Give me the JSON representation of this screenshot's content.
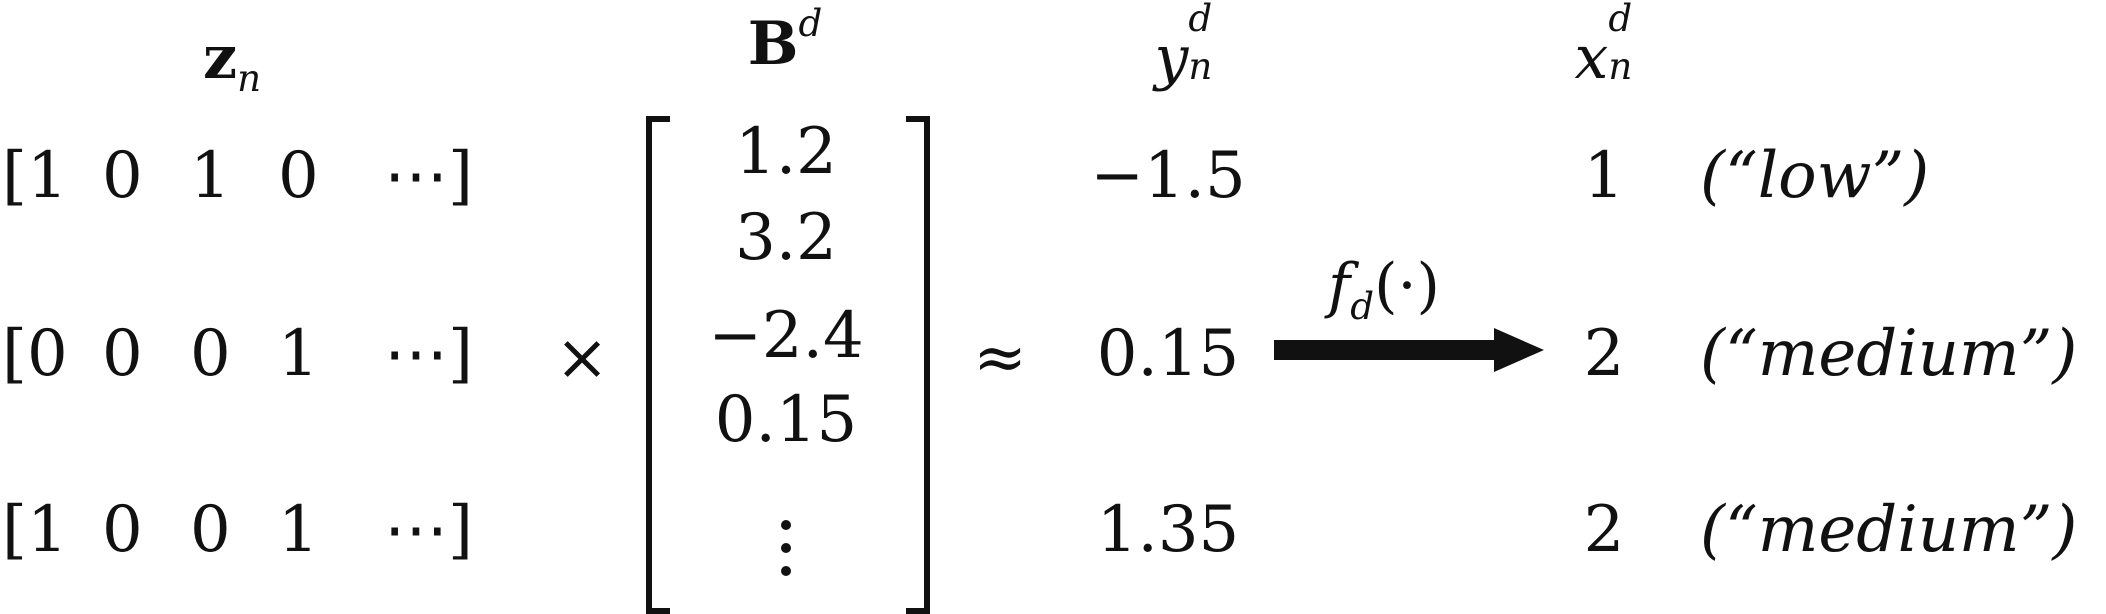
{
  "headers": {
    "z_base": "z",
    "z_sub": "n",
    "b_base": "B",
    "b_sup": "d",
    "y_base": "y",
    "y_sup": "d",
    "y_sub": "n",
    "x_base": "x",
    "x_sup": "d",
    "x_sub": "n"
  },
  "rows": [
    {
      "z": [
        "[1",
        "0",
        "1",
        "0",
        "⋯]"
      ],
      "y": "−1.5",
      "x": "1",
      "label": "(“low”)"
    },
    {
      "z": [
        "[0",
        "0",
        "0",
        "1",
        "⋯]"
      ],
      "y": "0.15",
      "x": "2",
      "label": "(“medium”)"
    },
    {
      "z": [
        "[1",
        "0",
        "0",
        "1",
        "⋯]"
      ],
      "y": "1.35",
      "x": "2",
      "label": "(“medium”)"
    }
  ],
  "b_values": [
    "1.2",
    "3.2",
    "−2.4",
    "0.15"
  ],
  "ops": {
    "times": "×",
    "approx": "≈"
  },
  "arrow": {
    "f_base": "f",
    "f_sub": "d",
    "f_arg": "(·)"
  }
}
